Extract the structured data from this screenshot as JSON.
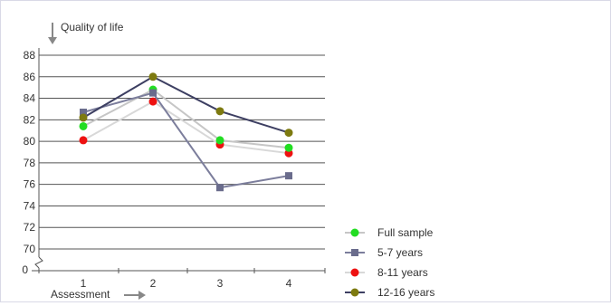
{
  "chart_data": {
    "type": "line",
    "title": "",
    "ylabel": "Quality of life",
    "xlabel": "Assessment",
    "categories": [
      "1",
      "2",
      "3",
      "4"
    ],
    "y_ticks": [
      70,
      72,
      74,
      76,
      78,
      80,
      82,
      84,
      86,
      88
    ],
    "y_floor_label": "0",
    "ylim": [
      68,
      88
    ],
    "axis_break": true,
    "grid": "horizontal",
    "legend_position": "bottom-right",
    "series": [
      {
        "name": "Full sample",
        "line_color": "#c6c6c6",
        "marker_color": "#22dd22",
        "marker": "circle",
        "values": [
          81.4,
          84.8,
          80.1,
          79.4
        ]
      },
      {
        "name": "5-7 years",
        "line_color": "#7c7e9c",
        "marker_color": "#6a6c8c",
        "marker": "square",
        "values": [
          82.7,
          84.5,
          75.7,
          76.8
        ]
      },
      {
        "name": "8-11 years",
        "line_color": "#d8d8d8",
        "marker_color": "#ee1111",
        "marker": "circle",
        "values": [
          80.1,
          83.7,
          79.7,
          78.9
        ]
      },
      {
        "name": "12-16 years",
        "line_color": "#3d3f62",
        "marker_color": "#7d7a10",
        "marker": "circle",
        "values": [
          82.2,
          86.0,
          82.8,
          80.8
        ]
      }
    ]
  }
}
